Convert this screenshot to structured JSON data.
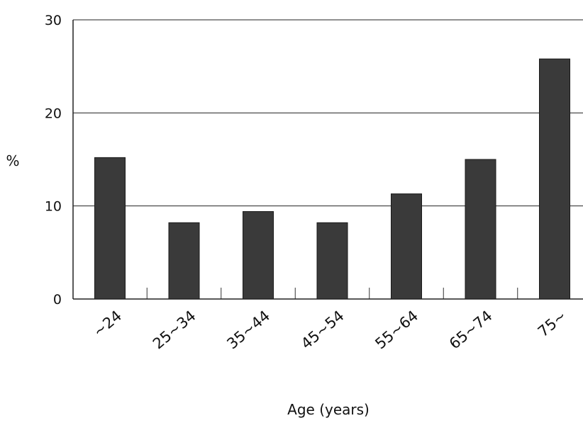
{
  "chart_data": {
    "type": "bar",
    "categories": [
      "~24",
      "25~34",
      "35~44",
      "45~54",
      "55~64",
      "65~74",
      "75~"
    ],
    "values": [
      15.2,
      8.2,
      9.4,
      8.2,
      11.3,
      15.0,
      25.8
    ],
    "xlabel": "Age (years)",
    "ylabel": "%",
    "ylim": [
      0,
      30
    ],
    "yticks": [
      0,
      10,
      20,
      30
    ],
    "grid": true,
    "bar_color": "#3a3a3a"
  }
}
